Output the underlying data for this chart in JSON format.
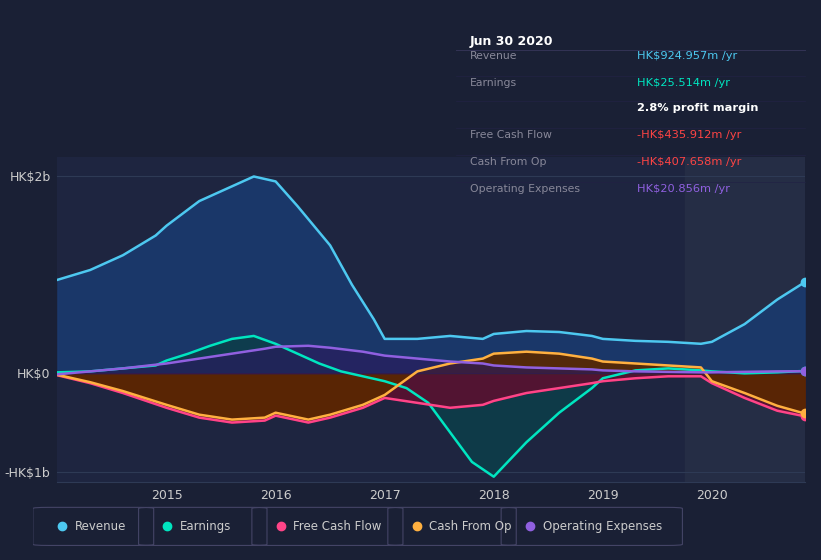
{
  "bg_color": "#1a2035",
  "plot_bg_color": "#1e2540",
  "highlight_bg_color": "#252d45",
  "grid_color": "#2e3a55",
  "zero_line_color": "#ffffff",
  "ylim": [
    -1100,
    2200
  ],
  "xlim": [
    2014.0,
    2020.85
  ],
  "yticks": [
    -1000,
    0,
    2000
  ],
  "xticks": [
    2015,
    2016,
    2017,
    2018,
    2019,
    2020
  ],
  "revenue_x": [
    2014.0,
    2014.3,
    2014.6,
    2014.9,
    2015.0,
    2015.3,
    2015.6,
    2015.8,
    2016.0,
    2016.2,
    2016.5,
    2016.7,
    2016.9,
    2017.0,
    2017.3,
    2017.6,
    2017.9,
    2018.0,
    2018.3,
    2018.6,
    2018.9,
    2019.0,
    2019.3,
    2019.6,
    2019.9,
    2020.0,
    2020.3,
    2020.6,
    2020.85
  ],
  "revenue_y": [
    950,
    1050,
    1200,
    1400,
    1500,
    1750,
    1900,
    2000,
    1950,
    1700,
    1300,
    900,
    550,
    350,
    350,
    380,
    350,
    400,
    430,
    420,
    380,
    350,
    330,
    320,
    300,
    320,
    500,
    750,
    925
  ],
  "earnings_x": [
    2014.0,
    2014.3,
    2014.6,
    2014.9,
    2015.0,
    2015.2,
    2015.4,
    2015.6,
    2015.8,
    2016.0,
    2016.2,
    2016.4,
    2016.6,
    2016.8,
    2017.0,
    2017.2,
    2017.4,
    2017.6,
    2017.8,
    2018.0,
    2018.3,
    2018.6,
    2018.9,
    2019.0,
    2019.3,
    2019.6,
    2019.9,
    2020.0,
    2020.3,
    2020.6,
    2020.85
  ],
  "earnings_y": [
    10,
    20,
    50,
    80,
    130,
    200,
    280,
    350,
    380,
    300,
    200,
    100,
    20,
    -30,
    -80,
    -150,
    -300,
    -600,
    -900,
    -1050,
    -700,
    -400,
    -150,
    -50,
    30,
    50,
    30,
    20,
    0,
    10,
    25
  ],
  "fcf_x": [
    2014.0,
    2014.3,
    2014.6,
    2015.0,
    2015.3,
    2015.6,
    2015.9,
    2016.0,
    2016.3,
    2016.5,
    2016.8,
    2017.0,
    2017.3,
    2017.6,
    2017.9,
    2018.0,
    2018.3,
    2018.6,
    2018.9,
    2019.0,
    2019.3,
    2019.6,
    2019.9,
    2020.0,
    2020.3,
    2020.6,
    2020.85
  ],
  "fcf_y": [
    -20,
    -100,
    -200,
    -350,
    -450,
    -500,
    -480,
    -430,
    -500,
    -450,
    -350,
    -250,
    -300,
    -350,
    -320,
    -280,
    -200,
    -150,
    -100,
    -80,
    -50,
    -30,
    -30,
    -100,
    -250,
    -380,
    -436
  ],
  "cashfromop_x": [
    2014.0,
    2014.3,
    2014.6,
    2015.0,
    2015.3,
    2015.6,
    2015.9,
    2016.0,
    2016.3,
    2016.5,
    2016.8,
    2017.0,
    2017.3,
    2017.6,
    2017.9,
    2018.0,
    2018.3,
    2018.6,
    2018.9,
    2019.0,
    2019.3,
    2019.6,
    2019.9,
    2020.0,
    2020.3,
    2020.6,
    2020.85
  ],
  "cashfromop_y": [
    -15,
    -90,
    -180,
    -320,
    -420,
    -470,
    -450,
    -400,
    -470,
    -420,
    -320,
    -220,
    20,
    100,
    150,
    200,
    220,
    200,
    150,
    120,
    100,
    80,
    60,
    -80,
    -200,
    -330,
    -408
  ],
  "opex_x": [
    2014.0,
    2014.3,
    2014.6,
    2015.0,
    2015.3,
    2015.6,
    2015.9,
    2016.0,
    2016.3,
    2016.5,
    2016.8,
    2017.0,
    2017.3,
    2017.6,
    2017.9,
    2018.0,
    2018.3,
    2018.6,
    2018.9,
    2019.0,
    2019.3,
    2019.6,
    2019.9,
    2020.0,
    2020.3,
    2020.6,
    2020.85
  ],
  "opex_y": [
    -10,
    20,
    50,
    100,
    150,
    200,
    250,
    270,
    280,
    260,
    220,
    180,
    150,
    120,
    100,
    80,
    60,
    50,
    40,
    30,
    20,
    15,
    10,
    10,
    15,
    20,
    21
  ],
  "revenue_color": "#4dc8f0",
  "revenue_fill": "#1a3a6e",
  "earnings_color": "#00e5c0",
  "earnings_fill": "#0d3d4a",
  "fcf_color": "#ff4488",
  "fcf_fill": "#5a1030",
  "cashfromop_color": "#ffb040",
  "cashfromop_fill": "#5a2800",
  "opex_color": "#9060e0",
  "opex_fill": "#2a1a5e",
  "text_color": "#cccccc",
  "highlight_x_start": 2019.75,
  "highlight_x_end": 2020.85,
  "legend_items": [
    "Revenue",
    "Earnings",
    "Free Cash Flow",
    "Cash From Op",
    "Operating Expenses"
  ],
  "legend_colors": [
    "#4dc8f0",
    "#00e5c0",
    "#ff4488",
    "#ffb040",
    "#9060e0"
  ],
  "tooltip_title": "Jun 30 2020",
  "tooltip_rows": [
    [
      "Revenue",
      "HK$924.957m /yr",
      "#4dc8f0"
    ],
    [
      "Earnings",
      "HK$25.514m /yr",
      "#00e5c0"
    ],
    [
      "",
      "2.8% profit margin",
      "#ffffff"
    ],
    [
      "Free Cash Flow",
      "-HK$435.912m /yr",
      "#ff4444"
    ],
    [
      "Cash From Op",
      "-HK$407.658m /yr",
      "#ff4444"
    ],
    [
      "Operating Expenses",
      "HK$20.856m /yr",
      "#9060e0"
    ]
  ]
}
